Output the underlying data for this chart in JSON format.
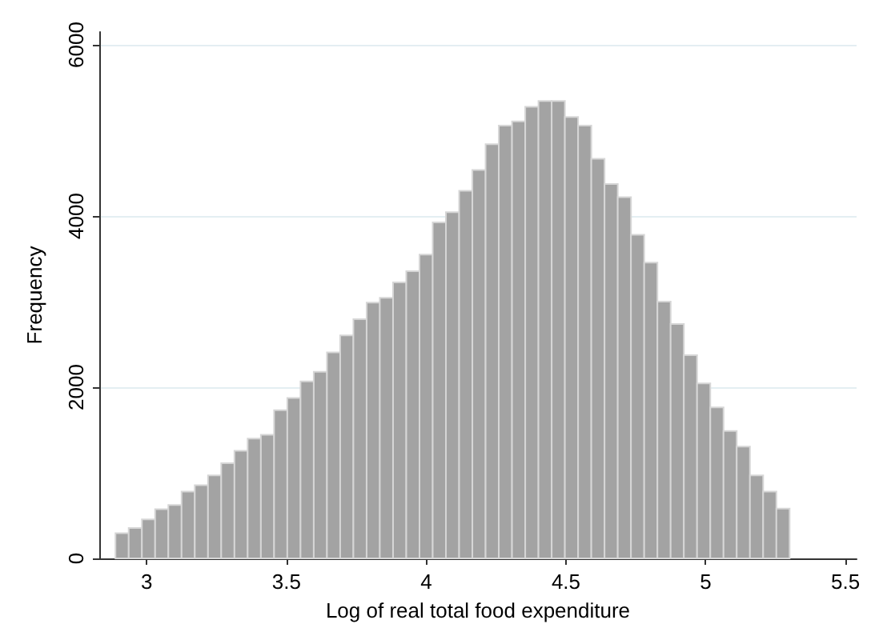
{
  "chart_data": {
    "type": "histogram",
    "xlabel": "Log of real total food expenditure",
    "ylabel": "Frequency",
    "bins": [
      2.888,
      2.9353,
      2.9826,
      3.0299,
      3.0772,
      3.1245,
      3.1718,
      3.2191,
      3.2664,
      3.3137,
      3.361,
      3.4083,
      3.4556,
      3.5029,
      3.5502,
      3.5975,
      3.6448,
      3.6921,
      3.7394,
      3.7867,
      3.834,
      3.8813,
      3.9286,
      3.9759,
      4.0232,
      4.0705,
      4.1178,
      4.1651,
      4.2124,
      4.2597,
      4.307,
      4.3543,
      4.4016,
      4.4489,
      4.4962,
      4.5435,
      4.5908,
      4.6381,
      4.6854,
      4.7327,
      4.78,
      4.8273,
      4.8746,
      4.9219,
      4.9692,
      5.0165,
      5.0638,
      5.1111,
      5.1584,
      5.2057,
      5.253,
      5.3003
    ],
    "values": [
      294,
      356,
      456,
      575,
      625,
      781,
      856,
      969,
      1113,
      1256,
      1400,
      1444,
      1731,
      1875,
      2069,
      2181,
      2406,
      2606,
      2794,
      2988,
      3044,
      3225,
      3356,
      3550,
      3925,
      4044,
      4294,
      4538,
      4838,
      5056,
      5106,
      5275,
      5344,
      5344,
      5156,
      5056,
      4669,
      4375,
      4219,
      3781,
      3456,
      3000,
      2738,
      2375,
      2044,
      1763,
      1488,
      1306,
      969,
      781,
      581
    ],
    "color": "#a3a3a3",
    "xlim": [
      2.83,
      5.54
    ],
    "xticks": [
      3,
      3.5,
      4,
      4.5,
      5,
      5.5
    ],
    "ylim": [
      0,
      6150
    ],
    "yticks": [
      0,
      2000,
      4000,
      6000
    ],
    "grid": "y",
    "legend": false
  }
}
